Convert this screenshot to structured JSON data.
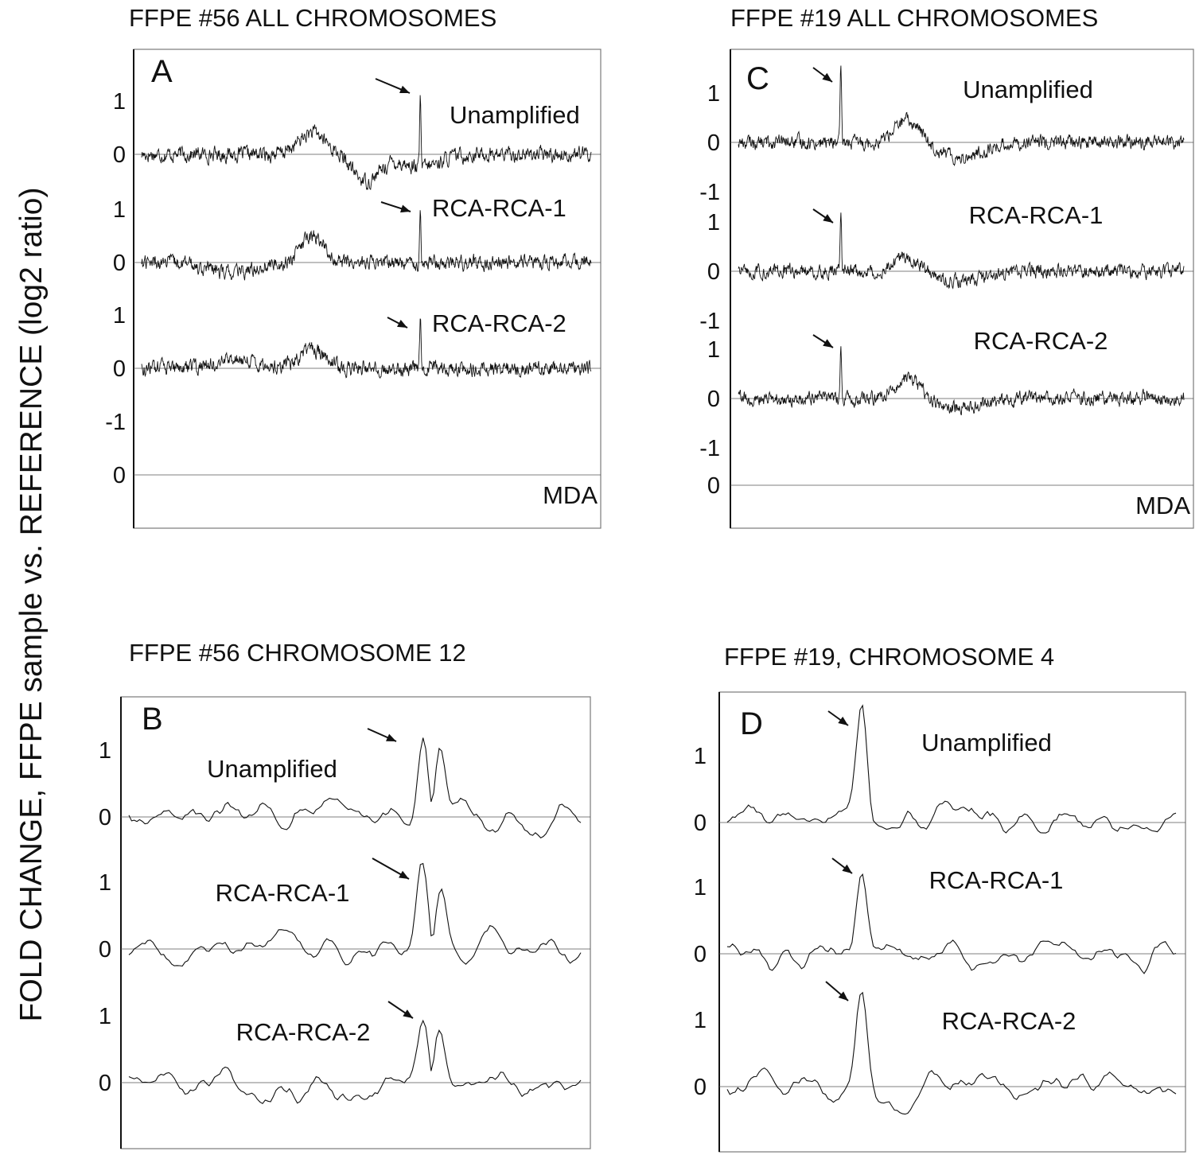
{
  "figure": {
    "y_axis_label": "FOLD CHANGE, FFPE sample vs. REFERENCE (log2 ratio)"
  },
  "chart_data": [
    {
      "panel": "A",
      "type": "line",
      "title": "FFPE #56 ALL CHROMOSOMES",
      "style": "dense",
      "series": [
        {
          "name": "Unamplified",
          "peak_at": 0.62,
          "peak_value": 1.4,
          "bumps": [
            [
              0.38,
              0.4,
              0.03
            ],
            [
              0.5,
              -0.5,
              0.03
            ],
            [
              0.62,
              -0.25,
              0.04
            ]
          ]
        },
        {
          "name": "RCA-RCA-1",
          "peak_at": 0.62,
          "peak_value": 1.2,
          "bumps": [
            [
              0.38,
              0.5,
              0.025
            ],
            [
              0.2,
              -0.2,
              0.05
            ]
          ]
        },
        {
          "name": "RCA-RCA-2",
          "peak_at": 0.62,
          "peak_value": 1.0,
          "bumps": [
            [
              0.38,
              0.35,
              0.03
            ],
            [
              0.22,
              0.15,
              0.05
            ]
          ]
        }
      ],
      "extra_trace": {
        "name": "MDA",
        "zero_label": "0"
      },
      "ticks": [
        [
          "1",
          "0"
        ],
        [
          "1",
          "0"
        ],
        [
          "1",
          "0",
          "-1"
        ]
      ]
    },
    {
      "panel": "B",
      "type": "line",
      "title": "FFPE #56 CHROMOSOME 12",
      "style": "smooth",
      "series": [
        {
          "name": "Unamplified",
          "peak_at": [
            0.65,
            0.69
          ],
          "peak_value": [
            1.3,
            1.4
          ]
        },
        {
          "name": "RCA-RCA-1",
          "peak_at": [
            0.65,
            0.69
          ],
          "peak_value": [
            1.3,
            1.1
          ]
        },
        {
          "name": "RCA-RCA-2",
          "peak_at": [
            0.65,
            0.69
          ],
          "peak_value": [
            1.0,
            0.85
          ]
        }
      ],
      "ticks": [
        [
          "1",
          "0"
        ],
        [
          "1",
          "0"
        ],
        [
          "1",
          "0"
        ]
      ]
    },
    {
      "panel": "C",
      "type": "line",
      "title": "FFPE #19 ALL CHROMOSOMES",
      "style": "dense",
      "series": [
        {
          "name": "Unamplified",
          "peak_at": 0.23,
          "peak_value": 1.6,
          "bumps": [
            [
              0.38,
              0.45,
              0.03
            ],
            [
              0.5,
              -0.3,
              0.05
            ]
          ]
        },
        {
          "name": "RCA-RCA-1",
          "peak_at": 0.23,
          "peak_value": 1.2,
          "bumps": [
            [
              0.38,
              0.3,
              0.03
            ],
            [
              0.5,
              -0.2,
              0.05
            ]
          ]
        },
        {
          "name": "RCA-RCA-2",
          "peak_at": 0.23,
          "peak_value": 1.2,
          "bumps": [
            [
              0.38,
              0.4,
              0.03
            ],
            [
              0.5,
              -0.2,
              0.05
            ]
          ]
        }
      ],
      "extra_trace": {
        "name": "MDA",
        "zero_label": "0"
      },
      "ticks": [
        [
          "1",
          "0",
          "-1"
        ],
        [
          "1",
          "0",
          "-1"
        ],
        [
          "1",
          "0",
          "-1"
        ]
      ]
    },
    {
      "panel": "D",
      "type": "line",
      "title": "FFPE #19, CHROMOSOME 4",
      "style": "smooth",
      "series": [
        {
          "name": "Unamplified",
          "peak_at": 0.3,
          "peak_value": 1.8
        },
        {
          "name": "RCA-RCA-1",
          "peak_at": 0.3,
          "peak_value": 1.45
        },
        {
          "name": "RCA-RCA-2",
          "peak_at": 0.3,
          "peak_value": 1.3
        }
      ],
      "ticks": [
        [
          "1",
          "0"
        ],
        [
          "1",
          "0"
        ],
        [
          "1",
          "0"
        ]
      ]
    }
  ]
}
